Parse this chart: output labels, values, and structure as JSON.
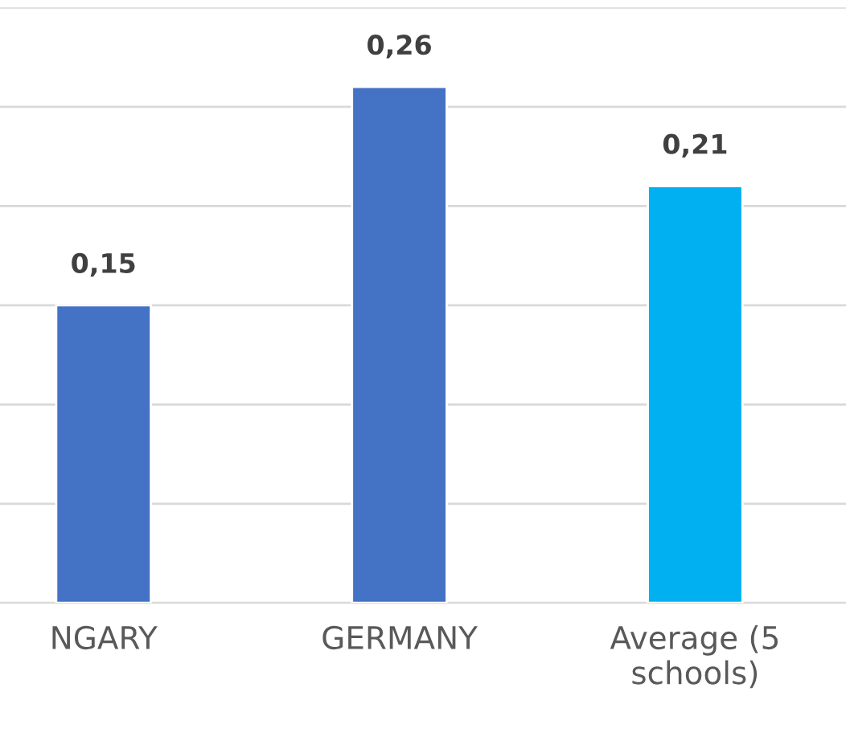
{
  "chart_data": {
    "type": "bar",
    "categories": [
      "NGARY",
      "GERMANY",
      "Average (5\nschools)"
    ],
    "values": [
      0.15,
      0.26,
      0.21
    ],
    "colors": [
      "#4472c4",
      "#4472c4",
      "#00b0f0"
    ],
    "value_labels": [
      "0,15",
      "0,26",
      "0,21"
    ],
    "ylim": [
      0,
      0.3
    ],
    "yticks": [
      {
        "value": 0,
        "label": null
      },
      {
        "value": 0.05,
        "label": null
      },
      {
        "value": 0.1,
        "label": null
      },
      {
        "value": 0.15,
        "label": null
      },
      {
        "value": 0.2,
        "label": null
      },
      {
        "value": 0.25,
        "label": null
      },
      {
        "value": 0.3,
        "label": null
      }
    ],
    "grid": "y",
    "tick_labels": "x"
  }
}
